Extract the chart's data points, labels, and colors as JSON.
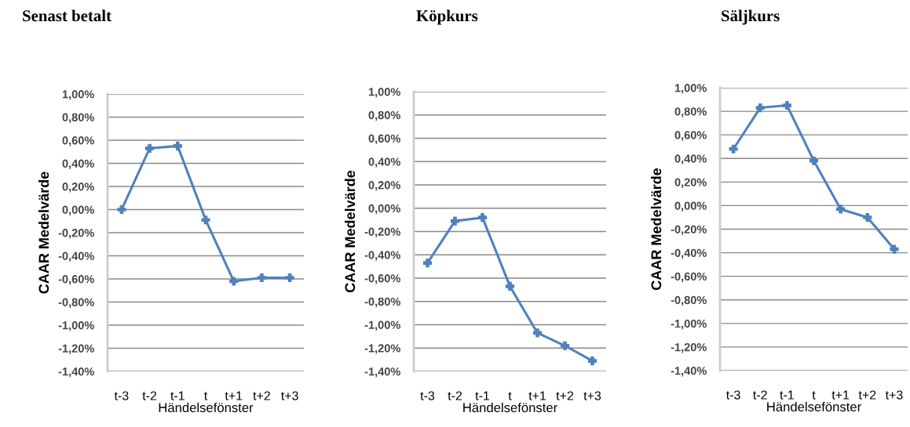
{
  "chart_data": [
    {
      "type": "line",
      "title": "Senast betalt",
      "xlabel": "Händelsefönster",
      "ylabel": "CAAR Medelvärde",
      "categories": [
        "t-3",
        "t-2",
        "t-1",
        "t",
        "t+1",
        "t+2",
        "t+3"
      ],
      "series": [
        {
          "color": "#4f81bd",
          "values": [
            0.0,
            0.53,
            0.55,
            -0.09,
            -0.62,
            -0.59,
            -0.59
          ]
        }
      ],
      "ylim": [
        -1.4,
        1.0
      ],
      "yticks": [
        {
          "value": -1.4,
          "label": "-1,40%"
        },
        {
          "value": -1.2,
          "label": "-1,20%"
        },
        {
          "value": -1.0,
          "label": "-1,00%"
        },
        {
          "value": -0.8,
          "label": "-0,80%"
        },
        {
          "value": -0.6,
          "label": "-0,60%"
        },
        {
          "value": -0.4,
          "label": "-0,40%"
        },
        {
          "value": -0.2,
          "label": "-0,20%"
        },
        {
          "value": 0.0,
          "label": "0,00%"
        },
        {
          "value": 0.2,
          "label": "0,20%"
        },
        {
          "value": 0.4,
          "label": "0,40%"
        },
        {
          "value": 0.6,
          "label": "0,60%"
        },
        {
          "value": 0.8,
          "label": "0,80%"
        },
        {
          "value": 1.0,
          "label": "1,00%"
        }
      ],
      "grid": "y",
      "legend": false,
      "marker": "cross",
      "line_style": "solid"
    },
    {
      "type": "line",
      "title": "Köpkurs",
      "xlabel": "Händelsefönster",
      "ylabel": "CAAR Medelvärde",
      "categories": [
        "t-3",
        "t-2",
        "t-1",
        "t",
        "t+1",
        "t+2",
        "t+3"
      ],
      "series": [
        {
          "color": "#4f81bd",
          "values": [
            -0.47,
            -0.11,
            -0.08,
            -0.67,
            -1.07,
            -1.18,
            -1.31
          ]
        }
      ],
      "ylim": [
        -1.4,
        1.0
      ],
      "yticks": [
        {
          "value": -1.4,
          "label": "-1,40%"
        },
        {
          "value": -1.2,
          "label": "-1,20%"
        },
        {
          "value": -1.0,
          "label": "-1,00%"
        },
        {
          "value": -0.8,
          "label": "-0,80%"
        },
        {
          "value": -0.6,
          "label": "-0,60%"
        },
        {
          "value": -0.4,
          "label": "-0,40%"
        },
        {
          "value": -0.2,
          "label": "-0,20%"
        },
        {
          "value": 0.0,
          "label": "0,00%"
        },
        {
          "value": 0.2,
          "label": "0,20%"
        },
        {
          "value": 0.4,
          "label": "0,40%"
        },
        {
          "value": 0.6,
          "label": "0,60%"
        },
        {
          "value": 0.8,
          "label": "0,80%"
        },
        {
          "value": 1.0,
          "label": "1,00%"
        }
      ],
      "grid": "y",
      "legend": false,
      "marker": "cross",
      "line_style": "solid"
    },
    {
      "type": "line",
      "title": "Säljkurs",
      "xlabel": "Händelsefönster",
      "ylabel": "CAAR Medelvärde",
      "categories": [
        "t-3",
        "t-2",
        "t-1",
        "t",
        "t+1",
        "t+2",
        "t+3"
      ],
      "series": [
        {
          "color": "#4f81bd",
          "values": [
            0.48,
            0.83,
            0.85,
            0.38,
            -0.03,
            -0.1,
            -0.37
          ]
        }
      ],
      "ylim": [
        -1.4,
        1.0
      ],
      "yticks": [
        {
          "value": -1.4,
          "label": "-1,40%"
        },
        {
          "value": -1.2,
          "label": "-1,20%"
        },
        {
          "value": -1.0,
          "label": "-1,00%"
        },
        {
          "value": -0.8,
          "label": "-0,80%"
        },
        {
          "value": -0.6,
          "label": "-0,60%"
        },
        {
          "value": -0.4,
          "label": "-0,40%"
        },
        {
          "value": -0.2,
          "label": "-0,20%"
        },
        {
          "value": 0.0,
          "label": "0,00%"
        },
        {
          "value": 0.2,
          "label": "0,20%"
        },
        {
          "value": 0.4,
          "label": "0,40%"
        },
        {
          "value": 0.6,
          "label": "0,60%"
        },
        {
          "value": 0.8,
          "label": "0,80%"
        },
        {
          "value": 1.0,
          "label": "1,00%"
        }
      ],
      "grid": "y",
      "legend": false,
      "marker": "cross",
      "line_style": "solid"
    }
  ]
}
